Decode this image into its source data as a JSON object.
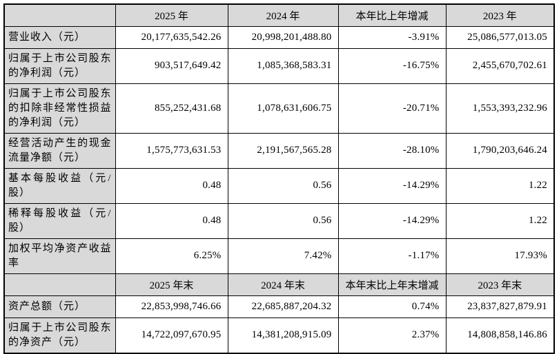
{
  "colors": {
    "header_bg": "#d9d9d9",
    "cell_bg": "#ffffff",
    "border": "#000000",
    "text": "#000000"
  },
  "table": {
    "sections": [
      {
        "corner": "",
        "columns": [
          "2025 年",
          "2024 年",
          "本年比上年增减",
          "2023 年"
        ],
        "rows": [
          {
            "label": "营业收入（元）",
            "values": [
              "20,177,635,542.26",
              "20,998,201,488.80",
              "-3.91%",
              "25,086,577,013.05"
            ]
          },
          {
            "label": "归属于上市公司股东的净利润（元）",
            "values": [
              "903,517,649.42",
              "1,085,368,583.31",
              "-16.75%",
              "2,455,670,702.61"
            ]
          },
          {
            "label": "归属于上市公司股东的扣除非经常性损益的净利润（元）",
            "values": [
              "855,252,431.68",
              "1,078,631,606.75",
              "-20.71%",
              "1,553,393,232.96"
            ]
          },
          {
            "label": "经营活动产生的现金流量净额（元）",
            "values": [
              "1,575,773,631.53",
              "2,191,567,565.28",
              "-28.10%",
              "1,790,203,646.24"
            ]
          },
          {
            "label": "基本每股收益（元/股）",
            "values": [
              "0.48",
              "0.56",
              "-14.29%",
              "1.22"
            ]
          },
          {
            "label": "稀释每股收益（元/股）",
            "values": [
              "0.48",
              "0.56",
              "-14.29%",
              "1.22"
            ]
          },
          {
            "label": "加权平均净资产收益率",
            "values": [
              "6.25%",
              "7.42%",
              "-1.17%",
              "17.93%"
            ]
          }
        ]
      },
      {
        "corner": "",
        "columns": [
          "2025 年末",
          "2024 年末",
          "本年末比上年末增减",
          "2023 年末"
        ],
        "rows": [
          {
            "label": "资产总额（元）",
            "values": [
              "22,853,998,746.66",
              "22,685,887,204.32",
              "0.74%",
              "23,837,827,879.91"
            ]
          },
          {
            "label": "归属于上市公司股东的净资产（元）",
            "values": [
              "14,722,097,670.95",
              "14,381,208,915.09",
              "2.37%",
              "14,808,858,146.86"
            ]
          }
        ]
      }
    ]
  }
}
